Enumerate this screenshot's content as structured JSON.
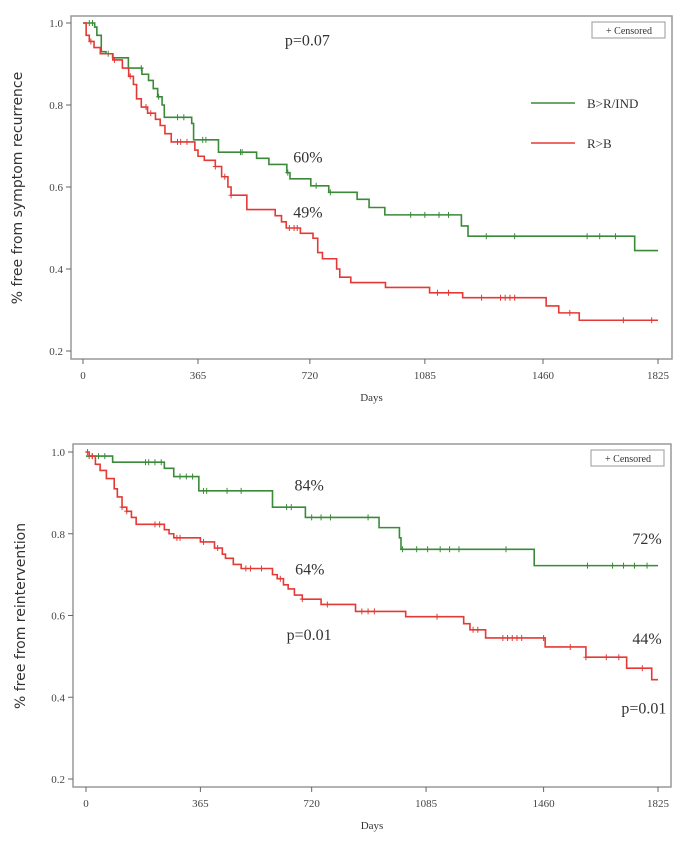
{
  "colors": {
    "B>R/IND": "#3a8a3a",
    "R>B": "#e53935"
  },
  "chart_data": [
    {
      "type": "line",
      "step": true,
      "xlabel": "Days",
      "ylabel": "% free from symptom recurrence",
      "xlim": [
        0,
        1825
      ],
      "ylim": [
        0.2,
        1.0
      ],
      "xticks": [
        0,
        365,
        720,
        1085,
        1460,
        1825
      ],
      "yticks": [
        0.2,
        0.4,
        0.6,
        0.8,
        1.0
      ],
      "ytick_labels": [
        "0.2",
        "0.4",
        "0.6",
        "0.8",
        "1.0"
      ],
      "censored_legend": "+ Censored",
      "legend": {
        "placement": "right",
        "entries": [
          "B>R/IND",
          "R>B"
        ]
      },
      "annotations": [
        {
          "text": "p=0.07",
          "x": 712,
          "y": 0.96
        },
        {
          "text": "60%",
          "x": 714,
          "y": 0.675
        },
        {
          "text": "49%",
          "x": 714,
          "y": 0.54
        }
      ],
      "series": [
        {
          "name": "B>R/IND",
          "color": "#3a8a3a",
          "x": [
            0,
            37,
            44,
            58,
            73,
            94,
            144,
            187,
            208,
            223,
            237,
            251,
            258,
            273,
            345,
            351,
            430,
            551,
            590,
            647,
            657,
            723,
            780,
            870,
            908,
            958,
            1201,
            1222,
            1751,
            1825
          ],
          "y": [
            1.0,
            0.99,
            0.97,
            0.93,
            0.925,
            0.915,
            0.89,
            0.875,
            0.86,
            0.84,
            0.82,
            0.8,
            0.77,
            0.77,
            0.755,
            0.715,
            0.685,
            0.67,
            0.655,
            0.635,
            0.62,
            0.603,
            0.587,
            0.57,
            0.55,
            0.532,
            0.505,
            0.48,
            0.445,
            0.445
          ],
          "censored": [
            20,
            30,
            80,
            185,
            240,
            300,
            320,
            380,
            390,
            500,
            505,
            650,
            740,
            785,
            1040,
            1085,
            1130,
            1160,
            1280,
            1370,
            1600,
            1640,
            1690
          ]
        },
        {
          "name": "R>B",
          "color": "#e53935",
          "x": [
            0,
            10,
            20,
            35,
            55,
            95,
            125,
            145,
            160,
            170,
            185,
            205,
            230,
            245,
            260,
            280,
            350,
            355,
            365,
            385,
            420,
            440,
            460,
            470,
            480,
            520,
            610,
            630,
            645,
            690,
            730,
            745,
            760,
            805,
            815,
            850,
            960,
            1100,
            1205,
            1470,
            1510,
            1575,
            1825
          ],
          "y": [
            1.0,
            0.97,
            0.955,
            0.94,
            0.925,
            0.91,
            0.89,
            0.87,
            0.85,
            0.815,
            0.795,
            0.78,
            0.765,
            0.75,
            0.73,
            0.71,
            0.71,
            0.69,
            0.675,
            0.665,
            0.65,
            0.625,
            0.6,
            0.58,
            0.58,
            0.545,
            0.53,
            0.515,
            0.5,
            0.487,
            0.475,
            0.44,
            0.425,
            0.4,
            0.38,
            0.367,
            0.355,
            0.342,
            0.33,
            0.31,
            0.293,
            0.275,
            0.275
          ],
          "censored": [
            25,
            100,
            150,
            200,
            215,
            300,
            310,
            330,
            420,
            450,
            470,
            655,
            670,
            680,
            1125,
            1160,
            1265,
            1325,
            1340,
            1355,
            1370,
            1545,
            1715,
            1805
          ]
        }
      ]
    },
    {
      "type": "line",
      "step": true,
      "xlabel": "Days",
      "ylabel": "% free from reintervention",
      "xlim": [
        0,
        1825
      ],
      "ylim": [
        0.2,
        1.0
      ],
      "xticks": [
        0,
        365,
        720,
        1085,
        1460,
        1825
      ],
      "yticks": [
        0.2,
        0.4,
        0.6,
        0.8,
        1.0
      ],
      "ytick_labels": [
        "0.2",
        "0.4",
        "0.6",
        "0.8",
        "1.0"
      ],
      "censored_legend": "+ Censored",
      "annotations": [
        {
          "text": "84%",
          "x": 712,
          "y": 0.92
        },
        {
          "text": "72%",
          "x": 1790,
          "y": 0.79
        },
        {
          "text": "64%",
          "x": 714,
          "y": 0.715
        },
        {
          "text": "p=0.01",
          "x": 712,
          "y": 0.555
        },
        {
          "text": "44%",
          "x": 1790,
          "y": 0.545
        },
        {
          "text": "p=0.01",
          "x": 1780,
          "y": 0.375
        }
      ],
      "series": [
        {
          "name": "B>R/IND",
          "color": "#3a8a3a",
          "x": [
            0,
            85,
            250,
            280,
            360,
            595,
            700,
            935,
            1000,
            1005,
            1430,
            1825
          ],
          "y": [
            0.99,
            0.975,
            0.96,
            0.94,
            0.905,
            0.865,
            0.84,
            0.815,
            0.79,
            0.762,
            0.722,
            0.722
          ],
          "censored": [
            10,
            20,
            40,
            60,
            190,
            200,
            220,
            240,
            300,
            320,
            340,
            375,
            385,
            450,
            495,
            640,
            655,
            720,
            750,
            780,
            900,
            1010,
            1055,
            1090,
            1130,
            1160,
            1190,
            1340,
            1600,
            1680,
            1715,
            1750,
            1790
          ]
        },
        {
          "name": "R>B",
          "color": "#e53935",
          "x": [
            0,
            10,
            30,
            45,
            65,
            90,
            100,
            115,
            130,
            145,
            160,
            250,
            265,
            280,
            365,
            410,
            420,
            435,
            445,
            470,
            495,
            595,
            600,
            610,
            630,
            645,
            665,
            690,
            750,
            860,
            1020,
            1205,
            1225,
            1275,
            1465,
            1595,
            1725,
            1805,
            1825
          ],
          "y": [
            1.0,
            0.99,
            0.97,
            0.955,
            0.935,
            0.91,
            0.89,
            0.865,
            0.855,
            0.84,
            0.823,
            0.81,
            0.8,
            0.79,
            0.78,
            0.765,
            0.765,
            0.75,
            0.74,
            0.725,
            0.715,
            0.7,
            0.7,
            0.69,
            0.675,
            0.665,
            0.65,
            0.64,
            0.627,
            0.61,
            0.597,
            0.58,
            0.565,
            0.545,
            0.523,
            0.498,
            0.471,
            0.443,
            0.443
          ],
          "censored": [
            5,
            20,
            115,
            130,
            220,
            235,
            290,
            300,
            375,
            420,
            510,
            525,
            560,
            620,
            690,
            770,
            880,
            900,
            920,
            1120,
            1235,
            1250,
            1330,
            1345,
            1360,
            1375,
            1390,
            1460,
            1545,
            1595,
            1660,
            1700,
            1775
          ]
        }
      ]
    }
  ]
}
